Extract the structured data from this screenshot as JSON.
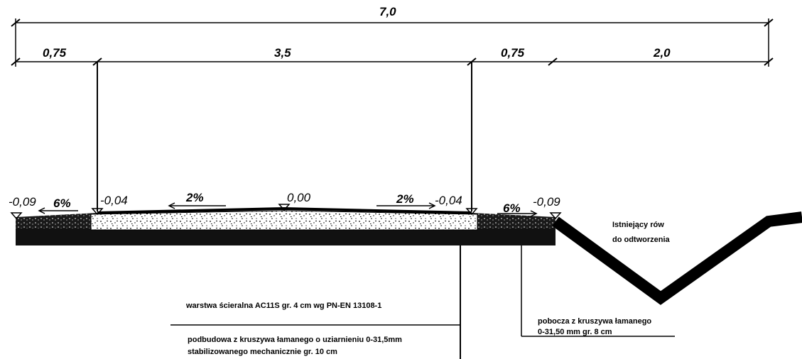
{
  "dimensions": {
    "total": "7,0",
    "left_shoulder": "0,75",
    "carriageway": "3,5",
    "right_shoulder": "0,75",
    "ditch": "2,0"
  },
  "elevations": {
    "left_edge": "-0,09",
    "left_lane_edge": "-0,04",
    "axis": "0,00",
    "right_lane_edge": "-0,04",
    "right_edge": "-0,09"
  },
  "slopes": {
    "left_shoulder": "6%",
    "left_lane": "2%",
    "right_lane": "2%",
    "right_shoulder": "6%"
  },
  "notes": {
    "ditch": [
      "Istniejący rów",
      "do odtworzenia"
    ],
    "wearing_course": "warstwa ścieralna  AC11S gr. 4 cm wg PN-EN 13108-1",
    "base_course": [
      "podbudowa z kruszywa łamanego o uziarnieniu 0-31,5mm",
      "stabilizowanego mechanicznie gr. 10 cm"
    ],
    "shoulder_material": [
      "pobocza z kruszywa łamanego",
      "0-31,50 mm gr. 8 cm"
    ]
  },
  "colors": {
    "line": "#000000",
    "background": "#ffffff"
  }
}
